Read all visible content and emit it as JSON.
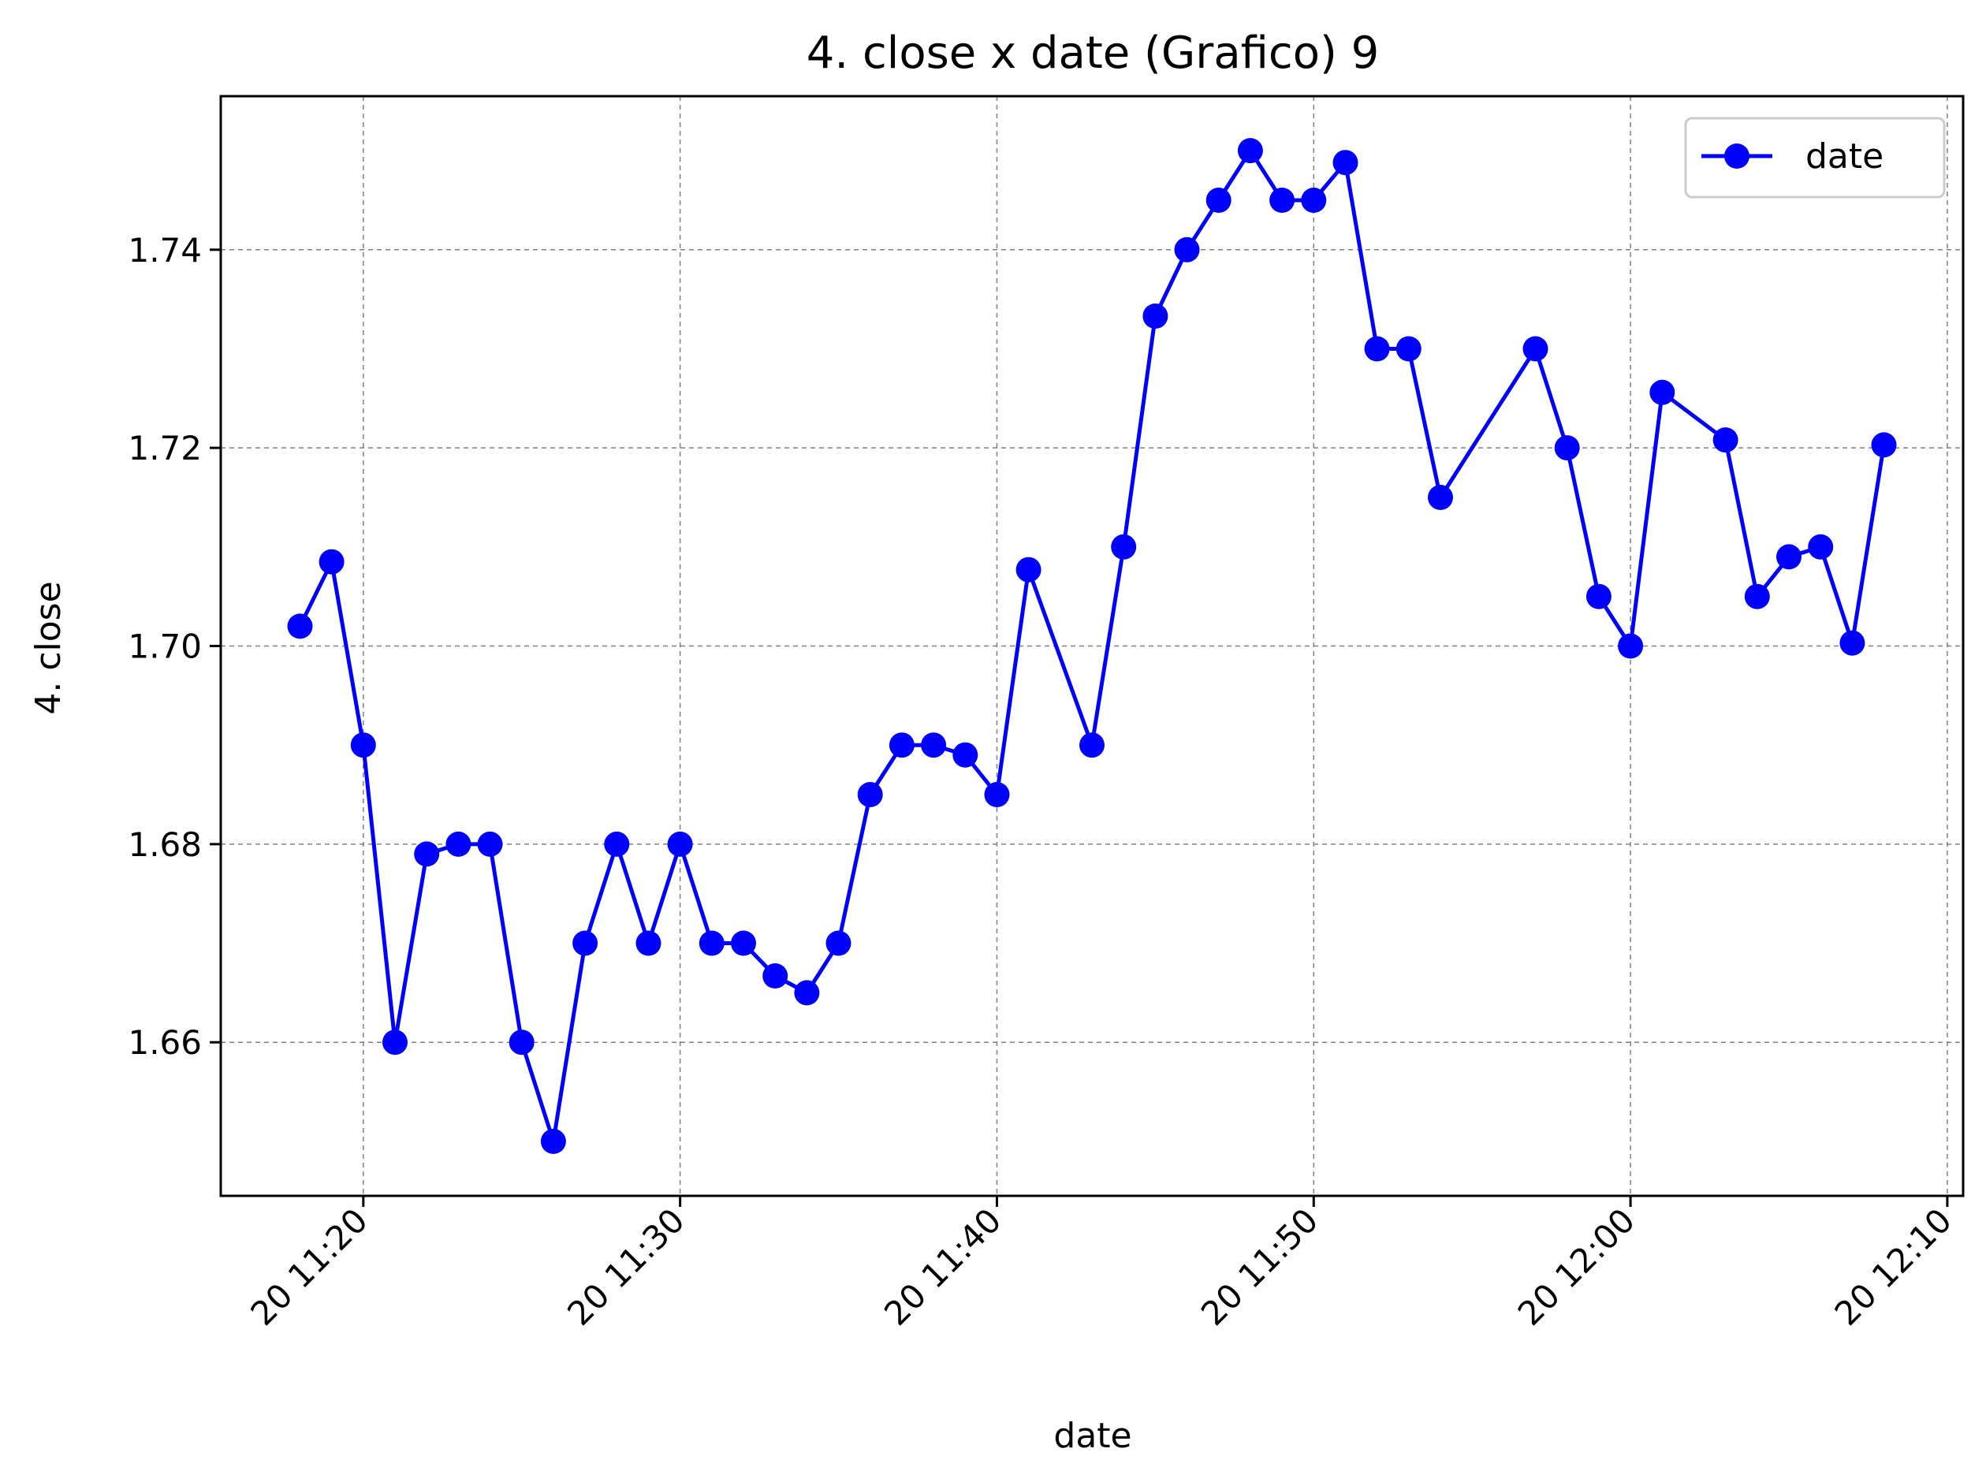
{
  "chart_data": {
    "type": "line",
    "title": "4. close x date (Grafico) 9",
    "xlabel": "date",
    "ylabel": "4. close",
    "x_ticks": [
      "20 11:20",
      "20 11:30",
      "20 11:40",
      "20 11:50",
      "20 12:00",
      "20 12:10"
    ],
    "x_tick_values": [
      "11:20",
      "11:30",
      "11:40",
      "11:50",
      "12:00",
      "12:10"
    ],
    "y_ticks": [
      "1.66",
      "1.68",
      "1.70",
      "1.72",
      "1.74"
    ],
    "y_tick_values": [
      1.66,
      1.68,
      1.7,
      1.72,
      1.74
    ],
    "xlim": [
      "11:15.5",
      "12:10.5"
    ],
    "ylim": [
      1.6445,
      1.7555
    ],
    "grid": true,
    "legend_position": "top-right",
    "colors": {
      "series": "#0000ff",
      "grid": "#808080"
    },
    "series": [
      {
        "name": "date",
        "x": [
          "11:18",
          "11:19",
          "11:20",
          "11:21",
          "11:22",
          "11:23",
          "11:24",
          "11:25",
          "11:26",
          "11:27",
          "11:28",
          "11:29",
          "11:30",
          "11:31",
          "11:32",
          "11:33",
          "11:34",
          "11:35",
          "11:36",
          "11:37",
          "11:38",
          "11:39",
          "11:40",
          "11:41",
          "11:43",
          "11:44",
          "11:45",
          "11:46",
          "11:47",
          "11:48",
          "11:49",
          "11:50",
          "11:51",
          "11:52",
          "11:53",
          "11:54",
          "11:57",
          "11:58",
          "11:59",
          "12:00",
          "12:01",
          "12:03",
          "12:04",
          "12:05",
          "12:06",
          "12:07",
          "12:08"
        ],
        "values": [
          1.702,
          1.7085,
          1.69,
          1.66,
          1.679,
          1.68,
          1.68,
          1.66,
          1.65,
          1.67,
          1.68,
          1.67,
          1.68,
          1.67,
          1.67,
          1.6667,
          1.665,
          1.67,
          1.685,
          1.69,
          1.69,
          1.689,
          1.685,
          1.7077,
          1.69,
          1.71,
          1.7333,
          1.74,
          1.745,
          1.75,
          1.745,
          1.745,
          1.7488,
          1.73,
          1.73,
          1.715,
          1.73,
          1.72,
          1.705,
          1.7,
          1.7256,
          1.7208,
          1.705,
          1.709,
          1.71,
          1.7003,
          1.7203
        ]
      }
    ]
  }
}
